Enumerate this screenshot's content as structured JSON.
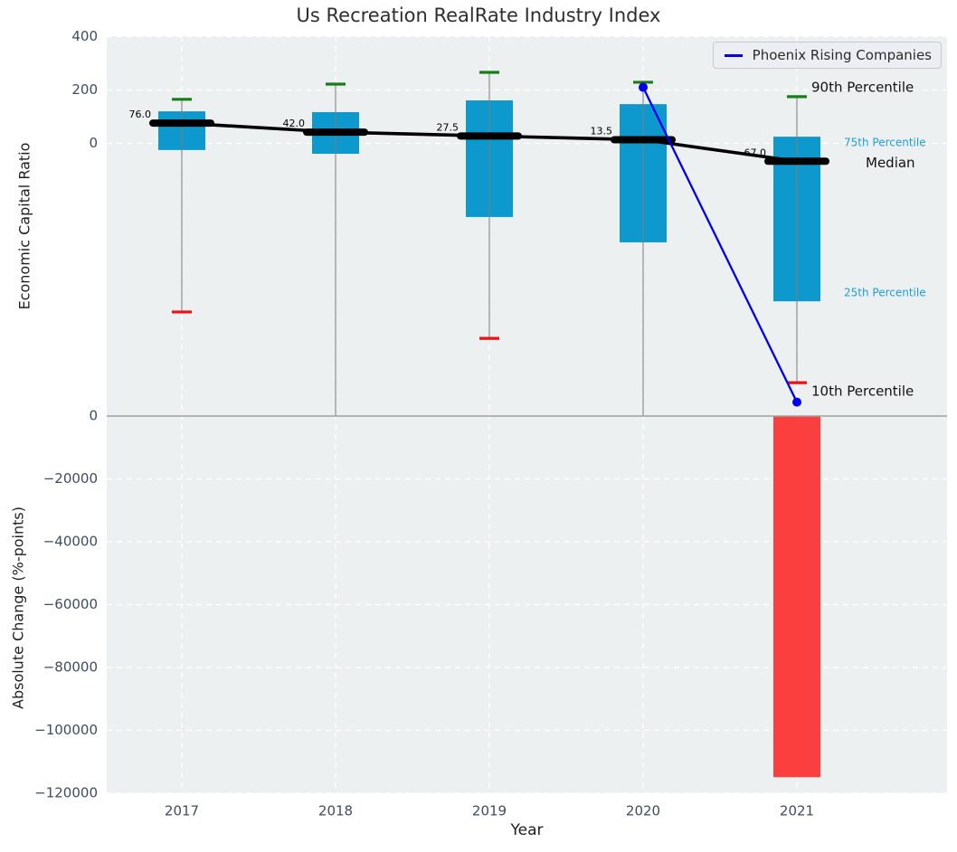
{
  "chart_data": {
    "type": "boxplot+bar",
    "title": "Us Recreation RealRate Industry Index",
    "xlabel": "Year",
    "categories": [
      "2017",
      "2018",
      "2019",
      "2020",
      "2021"
    ],
    "top_panel": {
      "ylabel": "Economic Capital Ratio",
      "ylim": [
        -1018,
        402
      ],
      "yticks": [
        0,
        200,
        400
      ],
      "grid": true,
      "boxes": [
        {
          "year": "2017",
          "p90": 165,
          "p75": 120,
          "median": 76.0,
          "p25": -25,
          "p10": -632,
          "median_label": "76.0"
        },
        {
          "year": "2018",
          "p90": 222,
          "p75": 117,
          "median": 42.0,
          "p25": -39,
          "p10": null,
          "median_label": "42.0"
        },
        {
          "year": "2019",
          "p90": 266,
          "p75": 161,
          "median": 27.5,
          "p25": -276,
          "p10": -731,
          "median_label": "27.5"
        },
        {
          "year": "2020",
          "p90": 229,
          "p75": 147,
          "median": 13.5,
          "p25": -371,
          "p10": null,
          "median_label": "13.5"
        },
        {
          "year": "2021",
          "p90": 175,
          "p75": 25,
          "median": -67.0,
          "p25": -592,
          "p10": -897,
          "median_label": "-67.0"
        }
      ],
      "overlay_line": {
        "name": "Phoenix Rising Companies",
        "points": [
          {
            "year": "2020",
            "value": 210
          },
          {
            "year": "2021",
            "value": -970
          }
        ]
      }
    },
    "bottom_panel": {
      "ylabel": "Absolute Change (%-points)",
      "ylim": [
        -120000,
        0
      ],
      "yticks": [
        0,
        -20000,
        -40000,
        -60000,
        -80000,
        -100000,
        -120000
      ],
      "grid": true,
      "bars": [
        {
          "year": "2021",
          "value": -114900
        }
      ]
    },
    "percentile_labels": [
      {
        "text": "90th Percentile",
        "anchor": "p90",
        "color": "#111111",
        "size": 15
      },
      {
        "text": "75th Percentile",
        "anchor": "p75",
        "color": "#1b9ed6",
        "size": 12
      },
      {
        "text": "Median",
        "anchor": "median",
        "color": "#111111",
        "size": 15
      },
      {
        "text": "25th Percentile",
        "anchor": "p25",
        "color": "#1b9ed6",
        "size": 12
      },
      {
        "text": "10th Percentile",
        "anchor": "p10",
        "color": "#111111",
        "size": 15
      }
    ],
    "legend": {
      "label": "Phoenix Rising Companies",
      "position": "upper right"
    },
    "colors": {
      "box": "#0d99ce",
      "median_line": "#000000",
      "p90_cap": "#177d17",
      "p10_cap": "#ee1111",
      "whisker": "#7c7c7c",
      "bar_negative": "#fb3e3e",
      "overlay_line": "#0000ee",
      "plot_bg": "#edf0f1",
      "grid": "#ffffff",
      "tick_text": "#3e4c63",
      "boundary": "#a0a0a0",
      "annotation_text": "#000000"
    }
  }
}
